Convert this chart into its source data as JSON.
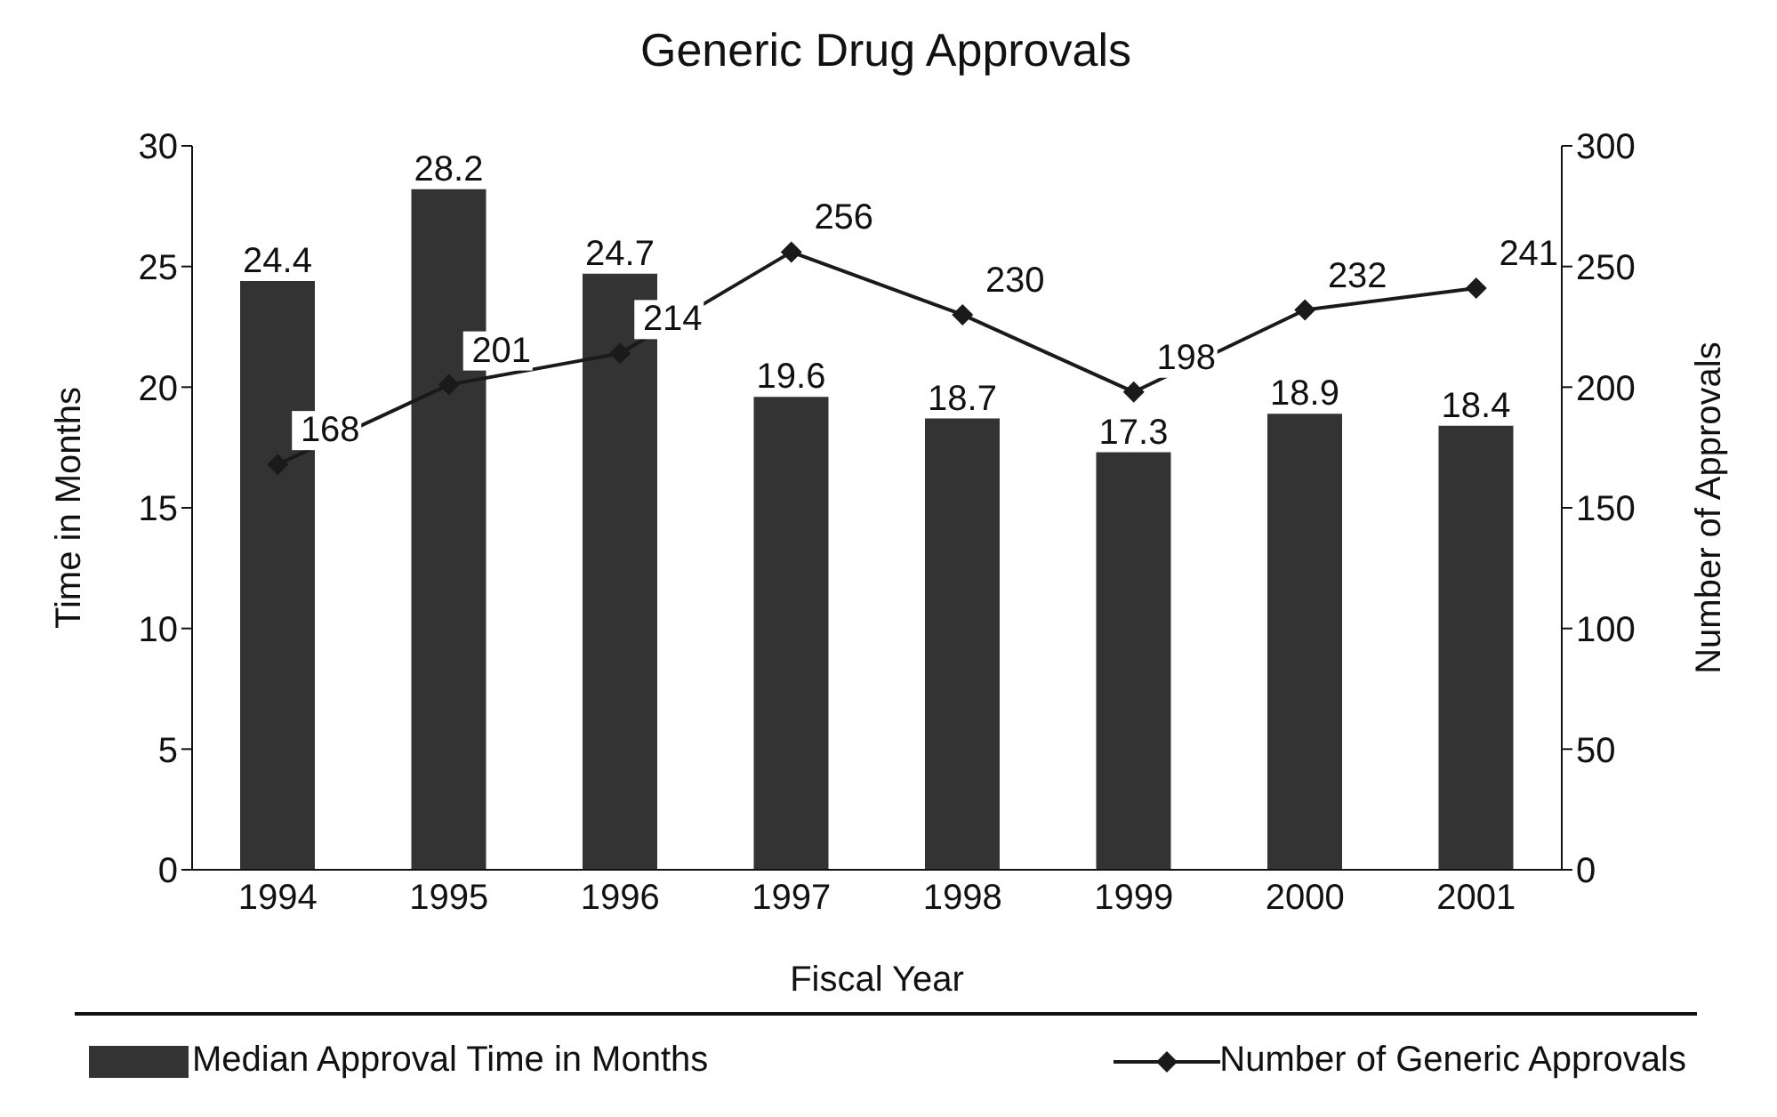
{
  "chart_data": {
    "type": "bar",
    "title": "Generic Drug Approvals",
    "xlabel": "Fiscal Year",
    "ylabel": "Time in Months",
    "y2label": "Number of Approvals",
    "categories": [
      "1994",
      "1995",
      "1996",
      "1997",
      "1998",
      "1999",
      "2000",
      "2001"
    ],
    "series": [
      {
        "name": "Median Approval Time in Months",
        "color": "#333333",
        "values": [
          24.4,
          28.2,
          24.7,
          19.6,
          18.7,
          17.3,
          18.9,
          18.4
        ]
      },
      {
        "name": "Number of Generic Approvals",
        "type": "line",
        "axis": "y2",
        "color": "#1a1a1a",
        "marker": "diamond",
        "values": [
          168,
          201,
          214,
          256,
          230,
          198,
          232,
          241
        ]
      }
    ],
    "ylim": [
      0,
      30
    ],
    "yticks": [
      0,
      5,
      10,
      15,
      20,
      25,
      30
    ],
    "y2lim": [
      0,
      300
    ],
    "y2ticks": [
      0,
      50,
      100,
      150,
      200,
      250,
      300
    ],
    "data_labels": true,
    "legend": "bottom"
  }
}
